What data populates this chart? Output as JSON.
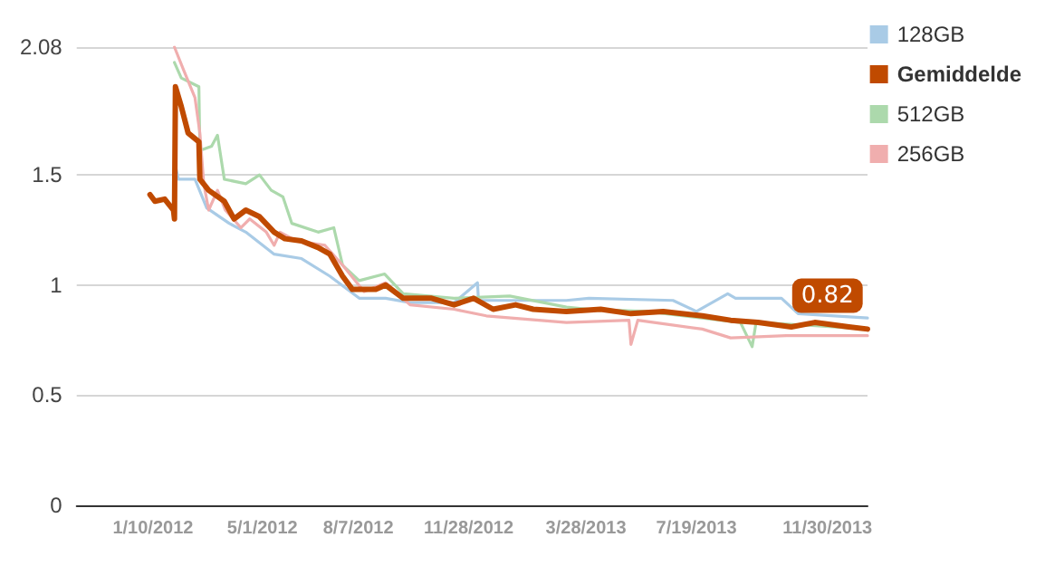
{
  "chart_data": {
    "type": "line",
    "xlim": [
      "2011-10-24",
      "2014-01-10"
    ],
    "xticks": [
      {
        "value": "2012-01-10",
        "label": "1/10/2012"
      },
      {
        "value": "2012-05-01",
        "label": "5/1/2012"
      },
      {
        "value": "2012-08-07",
        "label": "8/7/2012"
      },
      {
        "value": "2012-11-28",
        "label": "11/28/2012"
      },
      {
        "value": "2013-03-28",
        "label": "3/28/2013"
      },
      {
        "value": "2013-07-19",
        "label": "7/19/2013"
      },
      {
        "value": "2013-11-30",
        "label": "11/30/2013"
      }
    ],
    "ylim": [
      0,
      2.08
    ],
    "yticks": [
      0,
      0.5,
      1,
      1.5,
      2.08
    ],
    "grid": "y",
    "legend": "top right",
    "marker": "none",
    "line_style": "solid",
    "annotations": [
      {
        "text": "0.82",
        "x": "2013-11-30",
        "y": 0.82
      }
    ],
    "series": [
      {
        "name": "128GB",
        "color": "#a9cbe6",
        "x": [
          "2012-02-02",
          "2012-02-05",
          "2012-02-22",
          "2012-03-05",
          "2012-03-28",
          "2012-04-14",
          "2012-05-13",
          "2012-06-10",
          "2012-07-09",
          "2012-08-08",
          "2012-09-04",
          "2012-09-29",
          "2012-11-13",
          "2012-12-07",
          "2012-12-08",
          "2013-03-08",
          "2013-03-31",
          "2013-06-25",
          "2013-07-19",
          "2013-08-20",
          "2013-08-28",
          "2013-10-14",
          "2013-10-31",
          "2014-01-10"
        ],
        "values": [
          1.54,
          1.48,
          1.48,
          1.35,
          1.28,
          1.24,
          1.14,
          1.12,
          1.04,
          0.94,
          0.94,
          0.92,
          0.92,
          1.01,
          0.93,
          0.93,
          0.94,
          0.93,
          0.88,
          0.96,
          0.94,
          0.94,
          0.87,
          0.85
        ]
      },
      {
        "name": "Gemiddelde",
        "color": "#c04a00",
        "x": [
          "2012-01-07",
          "2012-01-12",
          "2012-01-22",
          "2012-01-31",
          "2012-02-01",
          "2012-02-02",
          "2012-02-08",
          "2012-02-15",
          "2012-02-26",
          "2012-02-27",
          "2012-03-07",
          "2012-03-23",
          "2012-04-02",
          "2012-04-14",
          "2012-04-28",
          "2012-05-13",
          "2012-05-24",
          "2012-06-10",
          "2012-06-27",
          "2012-07-09",
          "2012-07-22",
          "2012-08-01",
          "2012-08-25",
          "2012-09-04",
          "2012-09-22",
          "2012-10-21",
          "2012-11-13",
          "2012-12-03",
          "2012-12-23",
          "2013-01-15",
          "2013-02-02",
          "2013-03-08",
          "2013-04-12",
          "2013-05-13",
          "2013-06-15",
          "2013-07-25",
          "2013-08-23",
          "2013-09-20",
          "2013-10-24",
          "2013-11-17",
          "2013-12-22",
          "2014-01-10"
        ],
        "values": [
          1.41,
          1.38,
          1.39,
          1.34,
          1.3,
          1.9,
          1.81,
          1.69,
          1.65,
          1.48,
          1.43,
          1.38,
          1.3,
          1.34,
          1.31,
          1.24,
          1.21,
          1.2,
          1.17,
          1.14,
          1.04,
          0.98,
          0.98,
          1.0,
          0.94,
          0.94,
          0.91,
          0.94,
          0.89,
          0.91,
          0.89,
          0.88,
          0.89,
          0.87,
          0.88,
          0.86,
          0.84,
          0.83,
          0.81,
          0.83,
          0.81,
          0.8
        ]
      },
      {
        "name": "512GB",
        "color": "#acd9ac",
        "x": [
          "2012-02-01",
          "2012-02-08",
          "2012-02-26",
          "2012-02-27",
          "2012-03-10",
          "2012-03-16",
          "2012-03-23",
          "2012-04-14",
          "2012-04-28",
          "2012-05-10",
          "2012-05-22",
          "2012-05-31",
          "2012-06-27",
          "2012-07-13",
          "2012-07-22",
          "2012-08-08",
          "2012-09-03",
          "2012-09-22",
          "2012-11-13",
          "2013-01-09",
          "2013-03-08",
          "2013-03-31",
          "2013-05-29",
          "2013-09-02",
          "2013-09-14",
          "2013-09-18",
          "2013-10-31",
          "2014-01-10"
        ],
        "values": [
          2.01,
          1.94,
          1.9,
          1.61,
          1.63,
          1.68,
          1.48,
          1.46,
          1.5,
          1.43,
          1.4,
          1.28,
          1.24,
          1.26,
          1.09,
          1.02,
          1.05,
          0.96,
          0.94,
          0.95,
          0.9,
          0.89,
          0.88,
          0.83,
          0.72,
          0.83,
          0.82,
          0.8
        ]
      },
      {
        "name": "256GB",
        "color": "#f0aeae",
        "x": [
          "2012-02-01",
          "2012-02-10",
          "2012-02-22",
          "2012-02-27",
          "2012-03-02",
          "2012-03-07",
          "2012-03-16",
          "2012-03-24",
          "2012-04-09",
          "2012-04-18",
          "2012-05-05",
          "2012-05-13",
          "2012-05-19",
          "2012-06-05",
          "2012-07-04",
          "2012-07-22",
          "2012-08-13",
          "2012-09-04",
          "2012-09-29",
          "2012-11-13",
          "2012-12-16",
          "2013-03-08",
          "2013-05-11",
          "2013-05-13",
          "2013-05-20",
          "2013-07-25",
          "2013-08-23",
          "2013-10-19",
          "2014-01-10"
        ],
        "values": [
          2.08,
          1.98,
          1.85,
          1.69,
          1.46,
          1.34,
          1.43,
          1.34,
          1.26,
          1.3,
          1.24,
          1.18,
          1.24,
          1.2,
          1.18,
          1.09,
          0.97,
          1.01,
          0.91,
          0.89,
          0.86,
          0.83,
          0.84,
          0.73,
          0.84,
          0.8,
          0.76,
          0.77,
          0.77
        ]
      }
    ]
  }
}
